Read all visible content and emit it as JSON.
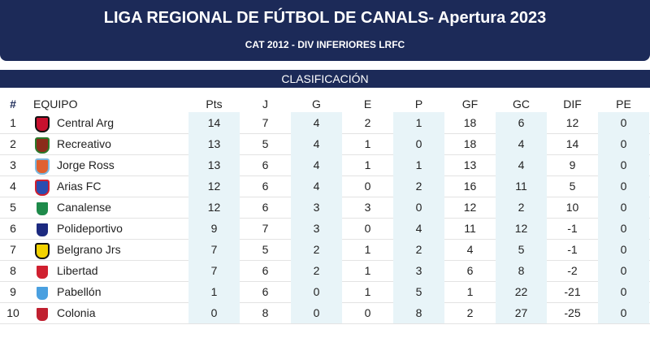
{
  "header": {
    "title": "LIGA REGIONAL DE FÚTBOL DE CANALS- Apertura 2023",
    "subtitle": "CAT 2012 - DIV INFERIORES LRFC"
  },
  "table": {
    "caption": "CLASIFICACIÓN",
    "columns": [
      "#",
      "EQUIPO",
      "Pts",
      "J",
      "G",
      "E",
      "P",
      "GF",
      "GC",
      "DIF",
      "PE"
    ],
    "rows": [
      [
        1,
        "Central Arg",
        14,
        7,
        4,
        2,
        1,
        18,
        6,
        12,
        0
      ],
      [
        2,
        "Recreativo",
        13,
        5,
        4,
        1,
        0,
        18,
        4,
        14,
        0
      ],
      [
        3,
        "Jorge Ross",
        13,
        6,
        4,
        1,
        1,
        13,
        4,
        9,
        0
      ],
      [
        4,
        "Arias FC",
        12,
        6,
        4,
        0,
        2,
        16,
        11,
        5,
        0
      ],
      [
        5,
        "Canalense",
        12,
        6,
        3,
        3,
        0,
        12,
        2,
        10,
        0
      ],
      [
        6,
        "Polideportivo",
        9,
        7,
        3,
        0,
        4,
        11,
        12,
        -1,
        0
      ],
      [
        7,
        "Belgrano Jrs",
        7,
        5,
        2,
        1,
        2,
        4,
        5,
        -1,
        0
      ],
      [
        8,
        "Libertad",
        7,
        6,
        2,
        1,
        3,
        6,
        8,
        -2,
        0
      ],
      [
        9,
        "Pabellón",
        1,
        6,
        0,
        1,
        5,
        1,
        22,
        -21,
        0
      ],
      [
        10,
        "Colonia",
        0,
        8,
        0,
        0,
        8,
        2,
        27,
        -25,
        0
      ]
    ]
  }
}
